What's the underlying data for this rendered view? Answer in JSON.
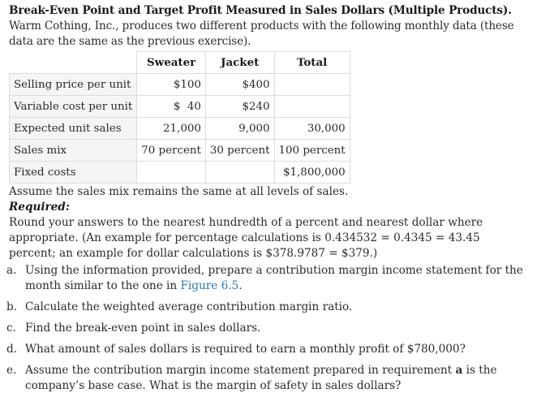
{
  "heading": {
    "title": "Break-Even Point and Target Profit Measured in Sales Dollars (Multiple Products).",
    "intro": "Warm Cothing, Inc., produces two different products with the following monthly data (these data are the same as the previous exercise)."
  },
  "table": {
    "headers": [
      "",
      "Sweater",
      "Jacket",
      "Total"
    ],
    "rows": [
      {
        "label": "Selling price per unit",
        "sweater": "$100",
        "jacket": "$400",
        "total": ""
      },
      {
        "label": "Variable cost per unit",
        "sweater": "$  40",
        "jacket": "$240",
        "total": ""
      },
      {
        "label": "Expected unit sales",
        "sweater": "21,000",
        "jacket": "9,000",
        "total": "30,000"
      },
      {
        "label": "Sales mix",
        "sweater": "70 percent",
        "jacket": "30 percent",
        "total": "100 percent"
      },
      {
        "label": "Fixed costs",
        "sweater": "",
        "jacket": "",
        "total": "$1,800,000"
      }
    ]
  },
  "assumption": "Assume the sales mix remains the same at all levels of sales.",
  "required": {
    "heading": "Required:",
    "instructions": "Round your answers to the nearest hundredth of a percent and nearest dollar where appropriate. (An example for percentage calculations is 0.434532 = 0.4345 = 43.45 percent; an example for dollar calculations is $378.9787 = $379.)"
  },
  "items": [
    {
      "marker": "a.",
      "text": "Using the information provided, prepare a contribution margin income statement for the month similar to the one in ",
      "link": "Figure 6.5",
      "suffix": "."
    },
    {
      "marker": "b.",
      "text": "Calculate the weighted average contribution margin ratio."
    },
    {
      "marker": "c.",
      "text": "Find the break-even point in sales dollars."
    },
    {
      "marker": "d.",
      "text": "What amount of sales dollars is required to earn a monthly profit of $780,000?"
    },
    {
      "marker": "e.",
      "text_before": "Assume the contribution margin income statement prepared in requirement ",
      "bold": "a",
      "text_after": " is the company’s base case. What is the margin of safety in sales dollars?"
    }
  ]
}
